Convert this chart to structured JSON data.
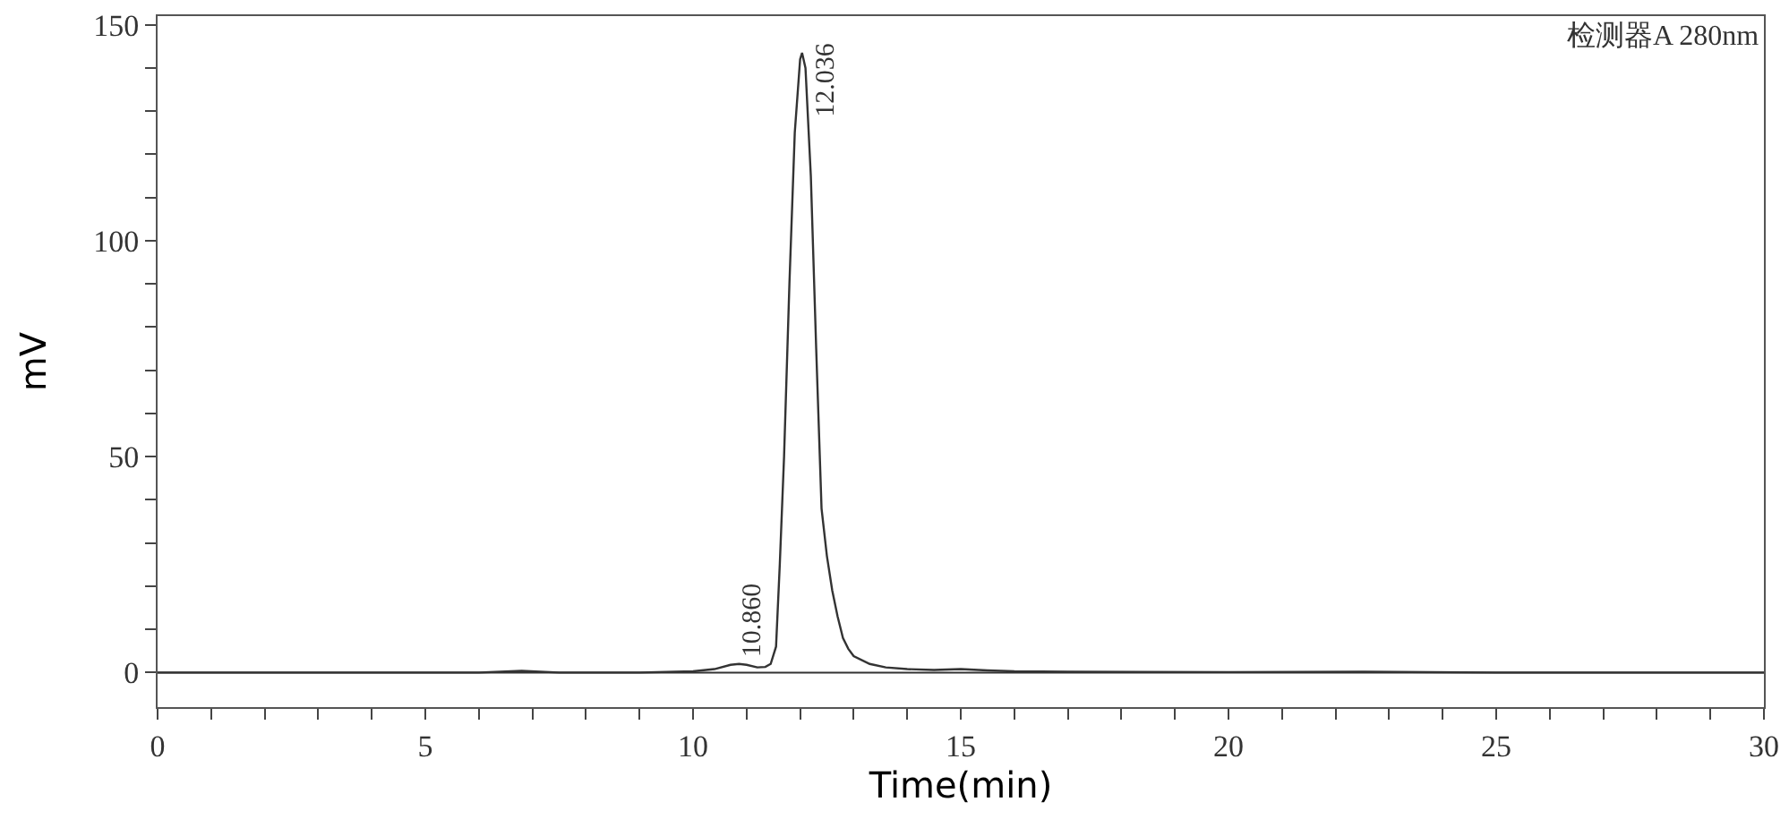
{
  "chart_data": {
    "type": "line",
    "xlabel": "Time(min)",
    "ylabel": "mV",
    "x": [
      0,
      2,
      4,
      5,
      6,
      6.8,
      7.5,
      9,
      10,
      10.4,
      10.7,
      10.86,
      11.0,
      11.2,
      11.35,
      11.45,
      11.55,
      11.62,
      11.7,
      11.8,
      11.9,
      12.0,
      12.036,
      12.1,
      12.2,
      12.3,
      12.4,
      12.5,
      12.6,
      12.7,
      12.8,
      12.9,
      13.0,
      13.3,
      13.6,
      14.0,
      14.5,
      15.0,
      15.5,
      16.0,
      17,
      20,
      22.5,
      25,
      28,
      30
    ],
    "series": [
      {
        "color": "#333333",
        "values": [
          0,
          0,
          0,
          0,
          0,
          0.4,
          0,
          0,
          0.3,
          0.8,
          1.8,
          2.0,
          1.8,
          1.2,
          1.3,
          2,
          6,
          25,
          50,
          90,
          125,
          142,
          143.5,
          140,
          115,
          75,
          38,
          27,
          19,
          13,
          8,
          5.5,
          3.8,
          2,
          1.2,
          0.8,
          0.6,
          0.8,
          0.5,
          0.3,
          0.2,
          0.1,
          0.2,
          0,
          0,
          0
        ]
      }
    ],
    "xlim": [
      0,
      30
    ],
    "ylim": [
      -8,
      152
    ],
    "xticks": [
      0,
      {
        "value": 1,
        "label": null
      },
      {
        "value": 2,
        "label": null
      },
      {
        "value": 3,
        "label": null
      },
      {
        "value": 4,
        "label": null
      },
      5,
      {
        "value": 6,
        "label": null
      },
      {
        "value": 7,
        "label": null
      },
      {
        "value": 8,
        "label": null
      },
      {
        "value": 9,
        "label": null
      },
      10,
      {
        "value": 11,
        "label": null
      },
      {
        "value": 12,
        "label": null
      },
      {
        "value": 13,
        "label": null
      },
      {
        "value": 14,
        "label": null
      },
      15,
      {
        "value": 16,
        "label": null
      },
      {
        "value": 17,
        "label": null
      },
      {
        "value": 18,
        "label": null
      },
      {
        "value": 19,
        "label": null
      },
      20,
      {
        "value": 21,
        "label": null
      },
      {
        "value": 22,
        "label": null
      },
      {
        "value": 23,
        "label": null
      },
      {
        "value": 24,
        "label": null
      },
      25,
      {
        "value": 26,
        "label": null
      },
      {
        "value": 27,
        "label": null
      },
      {
        "value": 28,
        "label": null
      },
      {
        "value": 29,
        "label": null
      },
      30
    ],
    "yticks": [
      0,
      {
        "value": 10,
        "label": null
      },
      {
        "value": 20,
        "label": null
      },
      {
        "value": 30,
        "label": null
      },
      {
        "value": 40,
        "label": null
      },
      50,
      {
        "value": 60,
        "label": null
      },
      {
        "value": 70,
        "label": null
      },
      {
        "value": 80,
        "label": null
      },
      {
        "value": 90,
        "label": null
      },
      100,
      {
        "value": 110,
        "label": null
      },
      {
        "value": 120,
        "label": null
      },
      {
        "value": 130,
        "label": null
      },
      {
        "value": 140,
        "label": null
      },
      150
    ],
    "ref_lines": [
      {
        "axis": "y",
        "value": 0,
        "color": "#333333"
      }
    ],
    "annotations": [
      {
        "text": "10.860",
        "x": 10.86,
        "y": 2.0
      },
      {
        "text": "12.036",
        "x": 12.036,
        "y": 143.5
      },
      "检测器A 280nm"
    ],
    "marker": "none",
    "line_style": "solid"
  }
}
